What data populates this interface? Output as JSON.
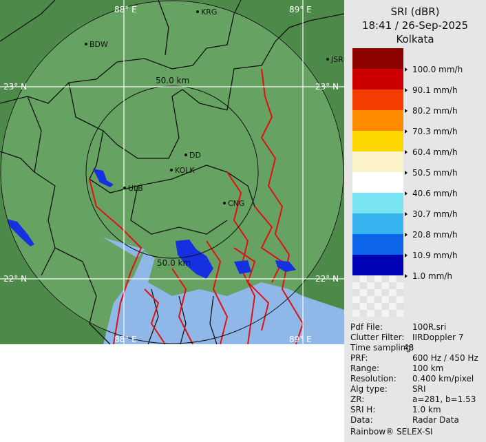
{
  "header": {
    "product": "SRI (dBR)",
    "timestamp": "18:41 / 26-Sep-2025",
    "site": "Kolkata"
  },
  "map": {
    "lon_labels": [
      "88° E",
      "89° E"
    ],
    "lat_labels": [
      "23° N",
      "22° N"
    ],
    "range_labels": [
      "50.0 km",
      "50.0 km"
    ],
    "cities": [
      "KRG",
      "BDW",
      "JSR",
      "DD",
      "KOLK",
      "ULB",
      "CNG"
    ]
  },
  "legend": [
    {
      "label": "100.0 mm/h",
      "color": "#8c0000"
    },
    {
      "label": "90.1 mm/h",
      "color": "#cc0000"
    },
    {
      "label": "80.2 mm/h",
      "color": "#f23c00"
    },
    {
      "label": "70.3 mm/h",
      "color": "#ff8c00"
    },
    {
      "label": "60.4 mm/h",
      "color": "#ffd700"
    },
    {
      "label": "50.5 mm/h",
      "color": "#fbf2c8"
    },
    {
      "label": "40.6 mm/h",
      "color": "#ffffff"
    },
    {
      "label": "30.7 mm/h",
      "color": "#7ae4f2"
    },
    {
      "label": "20.8 mm/h",
      "color": "#38b4f0"
    },
    {
      "label": "10.9 mm/h",
      "color": "#0c64e8"
    },
    {
      "label": "1.0 mm/h",
      "color": "#0000b4"
    }
  ],
  "info": [
    [
      "Pdf File:",
      "100R.sri"
    ],
    [
      "Clutter Filter:",
      "IIRDoppler 7"
    ],
    [
      "Time sampling:",
      "48"
    ],
    [
      "PRF:",
      "600 Hz / 450 Hz"
    ],
    [
      "Range:",
      "100 km"
    ],
    [
      "Resolution:",
      "0.400 km/pixel"
    ],
    [
      "Alg type:",
      "SRI"
    ],
    [
      "ZR:",
      "a=281, b=1.53"
    ],
    [
      "SRI H:",
      "1.0 km"
    ],
    [
      "Data:",
      "Radar Data"
    ]
  ],
  "footer": "Rainbow® SELEX-SI"
}
